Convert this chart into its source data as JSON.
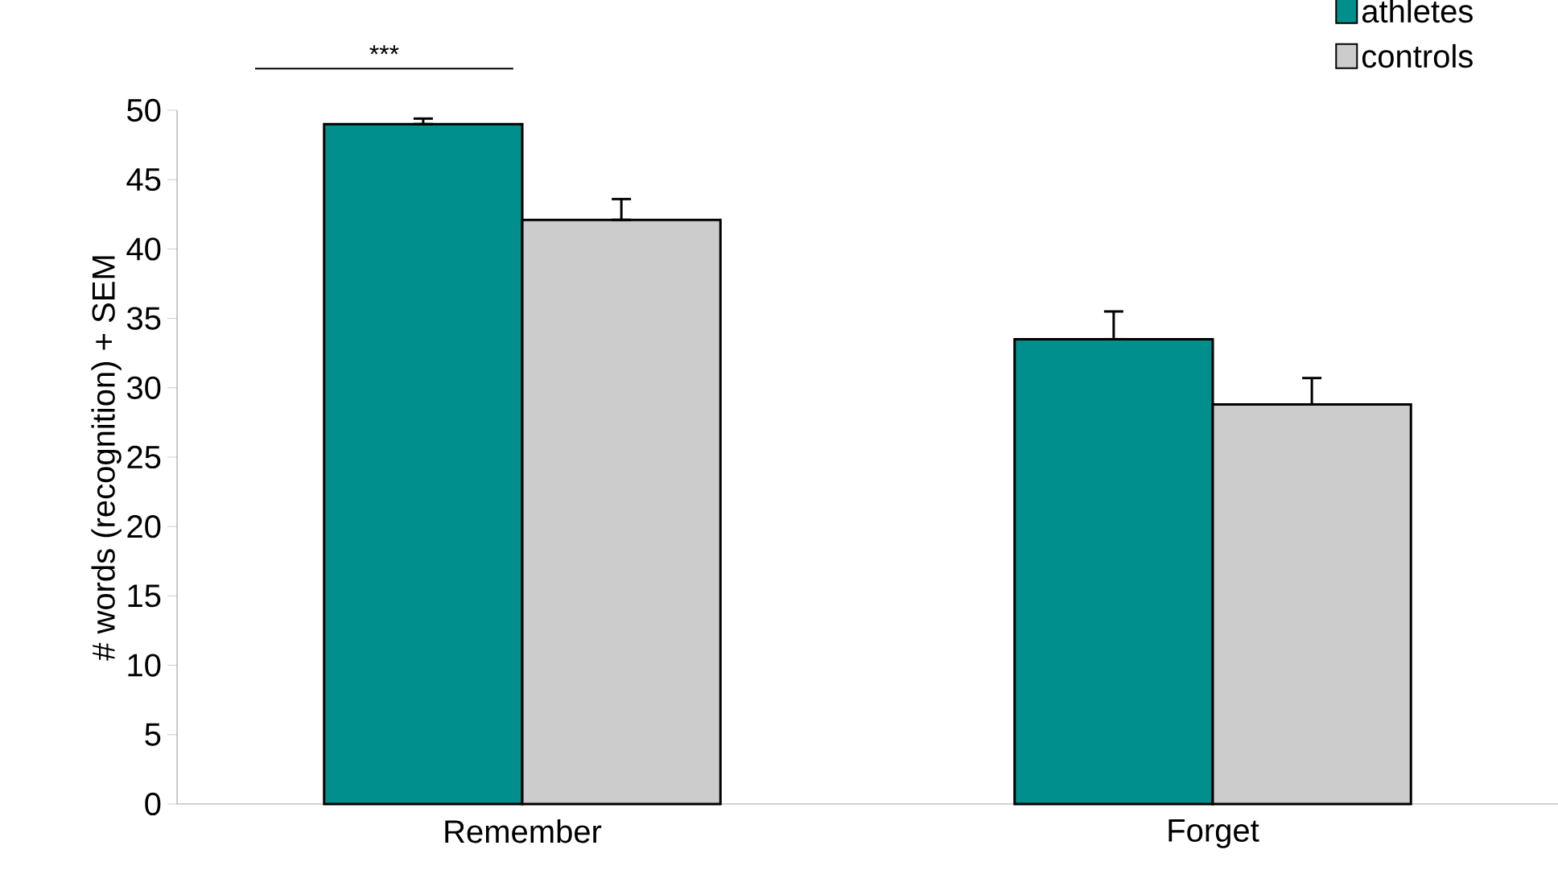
{
  "chart_data": {
    "type": "bar",
    "ylabel": "# words (recognition) + SEM",
    "categories": [
      "Remember",
      "Forget"
    ],
    "series": [
      {
        "name": "athletes",
        "color": "#008f8c",
        "values": [
          49.0,
          33.5
        ],
        "errors": [
          [
            49.0,
            49.4
          ],
          [
            33.5,
            35.5
          ]
        ]
      },
      {
        "name": "controls",
        "color": "#cccccc",
        "values": [
          42.1,
          28.8
        ],
        "errors": [
          [
            42.1,
            43.6
          ],
          [
            28.8,
            30.7
          ]
        ]
      }
    ],
    "ylim": [
      0,
      50
    ],
    "yticks": [
      0,
      5,
      10,
      15,
      20,
      25,
      30,
      35,
      40,
      45,
      50
    ],
    "legend": "top right",
    "grid": false,
    "annotations": [
      "***"
    ]
  }
}
